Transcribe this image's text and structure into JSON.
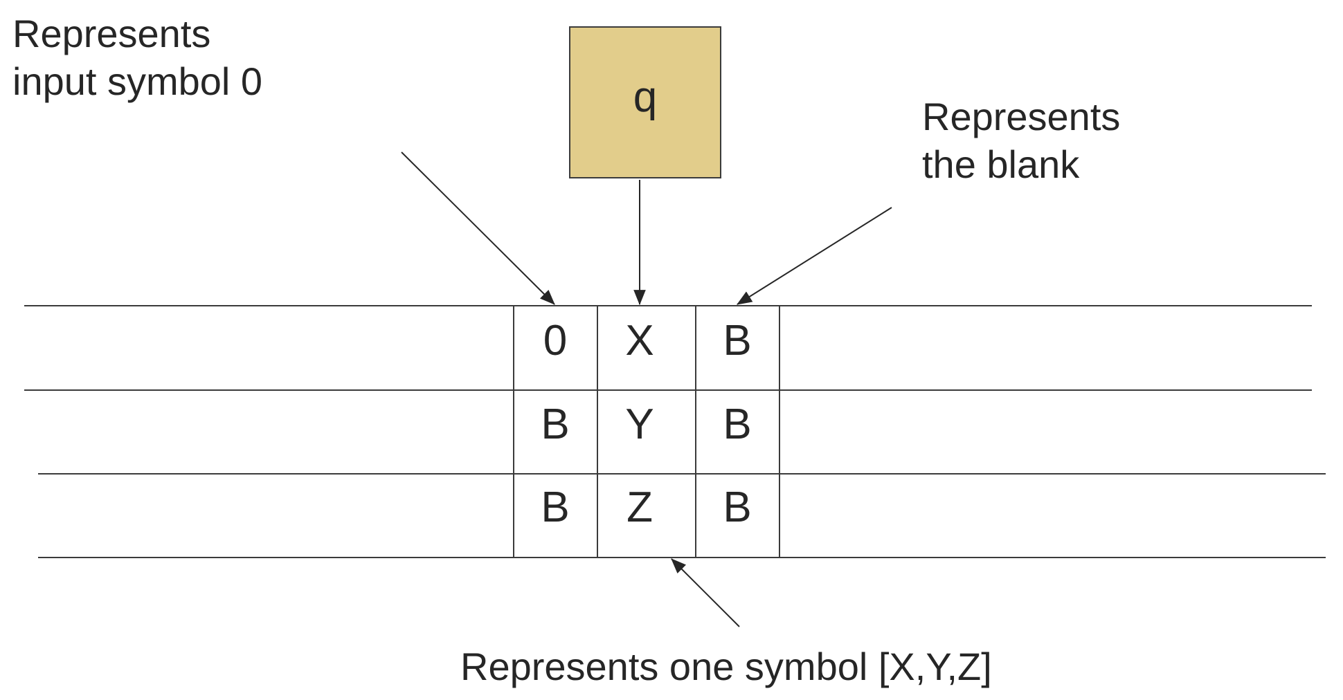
{
  "state": {
    "label": "q",
    "fill": "#e2cd8b"
  },
  "tape": {
    "rows": [
      [
        "0",
        "X",
        "B"
      ],
      [
        "B",
        "Y",
        "B"
      ],
      [
        "B",
        "Z",
        "B"
      ]
    ]
  },
  "annotations": {
    "input_symbol": {
      "line1": "Represents",
      "line2": "input symbol 0"
    },
    "blank": {
      "line1": "Represents",
      "line2": "the blank"
    },
    "one_symbol": {
      "text": "Represents one symbol [X,Y,Z]"
    }
  }
}
